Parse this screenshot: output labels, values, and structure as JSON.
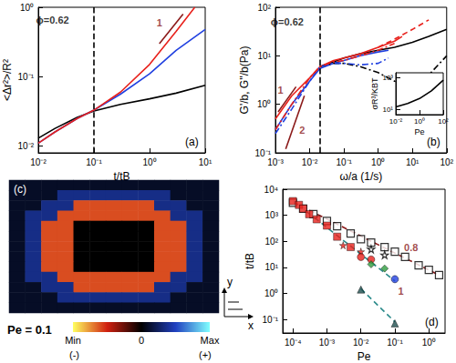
{
  "chart_data": [
    {
      "type": "line",
      "title": "(a)",
      "x_label": "t/tB",
      "y_label": "<Δr²>/R²",
      "log": true,
      "xlim": [
        0.01,
        10
      ],
      "ylim": [
        0.008,
        1
      ],
      "xticks": [
        {
          "value": 0.01,
          "label": "10⁻²"
        },
        {
          "value": 0.1,
          "label": "10⁻¹"
        },
        {
          "value": 1,
          "label": "10⁰"
        },
        {
          "value": 10,
          "label": "10¹"
        }
      ],
      "yticks": [
        {
          "value": 0.01,
          "label": "10⁻²"
        },
        {
          "value": 0.1,
          "label": "10⁻¹"
        },
        {
          "value": 1,
          "label": "10⁰"
        }
      ],
      "vline": 0.1,
      "series": [
        {
          "color": "#000000",
          "line_style": "solid",
          "x": [
            0.01,
            0.02,
            0.05,
            0.1,
            0.3,
            1,
            3,
            10
          ],
          "values": [
            0.013,
            0.018,
            0.026,
            0.032,
            0.04,
            0.048,
            0.058,
            0.075
          ]
        },
        {
          "color": "#2040e0",
          "line_style": "solid",
          "x": [
            0.01,
            0.02,
            0.05,
            0.1,
            0.3,
            1,
            3,
            10
          ],
          "values": [
            0.011,
            0.016,
            0.025,
            0.033,
            0.056,
            0.11,
            0.24,
            0.48
          ]
        },
        {
          "color": "#e8211c",
          "line_style": "solid",
          "x": [
            0.01,
            0.02,
            0.05,
            0.1,
            0.3,
            1,
            3,
            6.5
          ],
          "values": [
            0.011,
            0.016,
            0.025,
            0.033,
            0.06,
            0.15,
            0.45,
            1
          ]
        },
        {
          "color": "#8b1a1a",
          "line_style": "solid",
          "x": [
            1.5,
            4
          ],
          "values": [
            0.3,
            0.8
          ]
        }
      ],
      "annotations": [
        {
          "text": "ϕ=0.62",
          "x": 0.018,
          "y": 0.65
        },
        {
          "text": "1",
          "x": 1.5,
          "y": 0.6
        }
      ]
    },
    {
      "type": "line",
      "title": "(b)",
      "x_label": "ω/a (1/s)",
      "y_label": "G'/b, G''/b(Pa)",
      "log": true,
      "xlim": [
        0.001,
        100
      ],
      "ylim": [
        0.1,
        100
      ],
      "xticks": [
        {
          "value": 0.001,
          "label": "10⁻³"
        },
        {
          "value": 0.01,
          "label": "10⁻²"
        },
        {
          "value": 0.1,
          "label": "10⁻¹"
        },
        {
          "value": 1,
          "label": "10⁰"
        },
        {
          "value": 10,
          "label": "10¹"
        },
        {
          "value": 100,
          "label": "10²"
        }
      ],
      "yticks": [
        {
          "value": 0.1,
          "label": "10⁻¹"
        },
        {
          "value": 1,
          "label": "10⁰"
        },
        {
          "value": 10,
          "label": "10¹"
        },
        {
          "value": 100,
          "label": "10²"
        }
      ],
      "vline": 0.02,
      "series": [
        {
          "color": "#000000",
          "line_style": "solid",
          "x": [
            0.02,
            0.05,
            0.1,
            0.3,
            1,
            3,
            10,
            30,
            100
          ],
          "values": [
            6,
            7.5,
            9,
            11,
            13,
            15,
            19,
            25,
            35
          ]
        },
        {
          "color": "#2040e0",
          "line_style": "solid",
          "x": [
            0.001,
            0.003,
            0.01,
            0.02,
            0.05,
            0.1,
            0.3,
            1,
            2
          ],
          "values": [
            0.3,
            1,
            3,
            5.5,
            7,
            8,
            10,
            12,
            13
          ]
        },
        {
          "color": "#e8211c",
          "line_style": "solid",
          "x": [
            0.001,
            0.003,
            0.01,
            0.02,
            0.05,
            0.1,
            0.3,
            1,
            3,
            5
          ],
          "values": [
            0.5,
            1.5,
            3.5,
            6,
            8,
            9,
            11,
            15,
            20,
            25
          ]
        },
        {
          "color": "#e8211c",
          "line_style": "dashed",
          "x": [
            1,
            3,
            10,
            30
          ],
          "values": [
            15,
            22,
            35,
            55
          ]
        },
        {
          "color": "#000000",
          "line_style": "dashdot",
          "x": [
            0.02,
            0.05,
            0.1,
            0.3,
            1,
            3,
            10,
            30,
            100
          ],
          "values": [
            6,
            7,
            7,
            6,
            4.5,
            3,
            2.5,
            4,
            10
          ]
        },
        {
          "color": "#2040e0",
          "line_style": "dashdot",
          "x": [
            0.001,
            0.003,
            0.01,
            0.02,
            0.05,
            0.1,
            0.3,
            1,
            2
          ],
          "values": [
            0.25,
            0.8,
            3,
            6,
            7,
            7,
            6.5,
            7,
            9
          ]
        },
        {
          "color": "#e8211c",
          "line_style": "dashdot",
          "x": [
            0.001,
            0.003,
            0.01,
            0.02,
            0.05,
            0.1,
            0.3,
            1,
            3
          ],
          "values": [
            0.3,
            1,
            3.5,
            6,
            7.5,
            8,
            10,
            13,
            18
          ]
        },
        {
          "color": "#8b1a1a",
          "line_style": "solid",
          "x": [
            0.0012,
            0.004
          ],
          "values": [
            0.7,
            2.3
          ]
        },
        {
          "color": "#8b1a1a",
          "line_style": "solid",
          "x": [
            0.002,
            0.007
          ],
          "values": [
            0.12,
            1.5
          ]
        }
      ],
      "annotations": [
        {
          "text": "ϕ=0.62",
          "x": 0.0022,
          "y": 50
        },
        {
          "text": "1",
          "x": 0.0014,
          "y": 2
        },
        {
          "text": "2",
          "x": 0.006,
          "y": 0.3
        }
      ]
    },
    {
      "type": "line",
      "x_label": "Pe",
      "y_label": "σR³/KBT",
      "log": true,
      "xlim": [
        0.01,
        100
      ],
      "ylim": [
        5,
        2000
      ],
      "xticks": [
        {
          "value": 0.01,
          "label": "10⁻²"
        },
        {
          "value": 1,
          "label": "10⁰"
        },
        {
          "value": 100,
          "label": "10²"
        }
      ],
      "yticks": [
        {
          "value": 10,
          "label": "10¹"
        },
        {
          "value": 1000,
          "label": "10³"
        }
      ],
      "series": [
        {
          "color": "#000000",
          "line_style": "solid",
          "x": [
            0.01,
            0.1,
            1,
            10,
            100
          ],
          "values": [
            15,
            25,
            50,
            150,
            700
          ]
        }
      ]
    },
    {
      "type": "heatmap",
      "title": "(c)",
      "text": "Pe = 0.1",
      "axes_labels": [
        "x",
        "y"
      ],
      "cells": [
        [
          0.1,
          0.1,
          0.1,
          0.1,
          0.1,
          0.1,
          0.1,
          0.1,
          0.1,
          0.1,
          0.1,
          0.1,
          0.1
        ],
        [
          0.1,
          0.1,
          0.1,
          0.35,
          0.35,
          0.35,
          0.35,
          0.35,
          0.35,
          0.35,
          0.1,
          0.1,
          0.1
        ],
        [
          0.1,
          0.1,
          0.35,
          0.35,
          -0.6,
          -0.6,
          -0.6,
          -0.6,
          -0.6,
          0.35,
          0.35,
          0.1,
          0.1
        ],
        [
          0.1,
          0.35,
          0.35,
          -0.6,
          -0.6,
          -0.6,
          -0.6,
          -0.6,
          -0.6,
          -0.6,
          0.35,
          0.35,
          0.1
        ],
        [
          0.1,
          0.35,
          -0.6,
          -0.6,
          0,
          0,
          0,
          0,
          0,
          -0.6,
          -0.6,
          0.35,
          0.1
        ],
        [
          0.1,
          0.35,
          -0.6,
          -0.6,
          0,
          0,
          0,
          0,
          0,
          -0.6,
          -0.6,
          0.35,
          0.1
        ],
        [
          0.1,
          0.35,
          -0.6,
          -0.6,
          0,
          0,
          0,
          0,
          0,
          -0.6,
          -0.6,
          0.35,
          0.1
        ],
        [
          0.1,
          0.35,
          -0.6,
          -0.6,
          0,
          0,
          0,
          0,
          0,
          -0.6,
          -0.6,
          0.35,
          0.1
        ],
        [
          0.1,
          0.35,
          -0.6,
          -0.6,
          0,
          0,
          0,
          0,
          0,
          -0.6,
          -0.6,
          0.35,
          0.1
        ],
        [
          0.1,
          0.35,
          0.35,
          -0.6,
          -0.6,
          -0.6,
          -0.6,
          -0.6,
          -0.6,
          -0.6,
          0.35,
          0.35,
          0.1
        ],
        [
          0.1,
          0.1,
          0.35,
          0.35,
          -0.6,
          -0.6,
          -0.6,
          -0.6,
          -0.6,
          0.35,
          0.35,
          0.1,
          0.1
        ],
        [
          0.1,
          0.1,
          0.1,
          0.35,
          0.35,
          0.35,
          0.35,
          0.35,
          0.35,
          0.35,
          0.1,
          0.1,
          0.1
        ],
        [
          0.1,
          0.1,
          0.1,
          0.1,
          0.1,
          0.1,
          0.1,
          0.1,
          0.1,
          0.1,
          0.1,
          0.1,
          0.1
        ]
      ],
      "colorbar": {
        "range": [
          -1,
          1
        ],
        "ticks": [
          {
            "value": -1,
            "label": "Min"
          },
          {
            "value": 0,
            "label": "0"
          },
          {
            "value": 1,
            "label": "Max"
          }
        ],
        "sign_labels": [
          "(-)",
          "(+)"
        ],
        "colors": [
          "#ffff60",
          "#d02010",
          "#000000",
          "#2040c0",
          "#80ffff"
        ]
      }
    },
    {
      "type": "scatter",
      "title": "(d)",
      "x_label": "Pe",
      "y_label": "t/tB",
      "log": true,
      "xlim": [
        5e-05,
        3
      ],
      "ylim": [
        0.03,
        10000
      ],
      "xticks": [
        {
          "value": 0.0001,
          "label": "10⁻⁴"
        },
        {
          "value": 0.001,
          "label": "10⁻³"
        },
        {
          "value": 0.01,
          "label": "10⁻²"
        },
        {
          "value": 0.1,
          "label": "10⁻¹"
        },
        {
          "value": 1,
          "label": "10⁰"
        }
      ],
      "yticks": [
        {
          "value": 0.1,
          "label": "10⁻¹"
        },
        {
          "value": 1,
          "label": "10⁰"
        },
        {
          "value": 10,
          "label": "10¹"
        },
        {
          "value": 100,
          "label": "10²"
        },
        {
          "value": 1000,
          "label": "10³"
        },
        {
          "value": 10000,
          "label": "10⁴"
        }
      ],
      "series": [
        {
          "type": "line",
          "color": "#8b1a1a",
          "line_style": "dashed",
          "x": [
            0.0001,
            2
          ],
          "values": [
            3200,
            5
          ]
        },
        {
          "type": "line",
          "color": "#2a8a8a",
          "line_style": "dashed",
          "x": [
            0.0001,
            0.1
          ],
          "values": [
            3600,
            3
          ]
        },
        {
          "type": "line",
          "color": "#2a8a8a",
          "line_style": "dashed",
          "x": [
            0.01,
            0.1
          ],
          "values": [
            1.5,
            0.08
          ]
        },
        {
          "color": "#000000",
          "marker": "square_open",
          "x": [
            0.0001,
            0.0002,
            0.0004,
            0.001,
            0.002,
            0.005,
            0.01,
            0.02,
            0.05,
            0.1,
            0.2,
            0.5,
            1,
            2
          ],
          "values": [
            3000,
            1800,
            1100,
            600,
            380,
            200,
            120,
            90,
            60,
            40,
            25,
            12,
            8,
            5
          ]
        },
        {
          "color": "#e8211c",
          "marker": "square",
          "x": [
            0.0001,
            0.00015,
            0.0002,
            0.0003,
            0.0005,
            0.001,
            0.002,
            0.005
          ],
          "values": [
            3500,
            2500,
            1800,
            1100,
            700,
            400,
            150,
            60
          ]
        },
        {
          "color": "#e8211c",
          "marker": "star",
          "x": [
            0.003,
            0.01
          ],
          "values": [
            70,
            40
          ]
        },
        {
          "color": "#e8211c",
          "marker": "circle",
          "x": [
            0.01,
            0.02
          ],
          "values": [
            25,
            20
          ]
        },
        {
          "color": "#2e9e3e",
          "marker": "diamond",
          "x": [
            0.02,
            0.05
          ],
          "values": [
            13,
            9
          ]
        },
        {
          "color": "#2040e0",
          "marker": "circle",
          "x": [
            0.1
          ],
          "values": [
            3.5
          ]
        },
        {
          "color": "#000000",
          "marker": "star_open",
          "x": [
            0.02,
            0.05
          ],
          "values": [
            50,
            30
          ]
        },
        {
          "color": "#1f4f4f",
          "marker": "triangle",
          "x": [
            0.01,
            0.1
          ],
          "values": [
            1.4,
            0.07
          ]
        }
      ],
      "annotations": [
        {
          "text": "0.8",
          "x": 0.3,
          "y": 60
        },
        {
          "text": "1",
          "x": 0.15,
          "y": 1.2
        }
      ]
    }
  ]
}
